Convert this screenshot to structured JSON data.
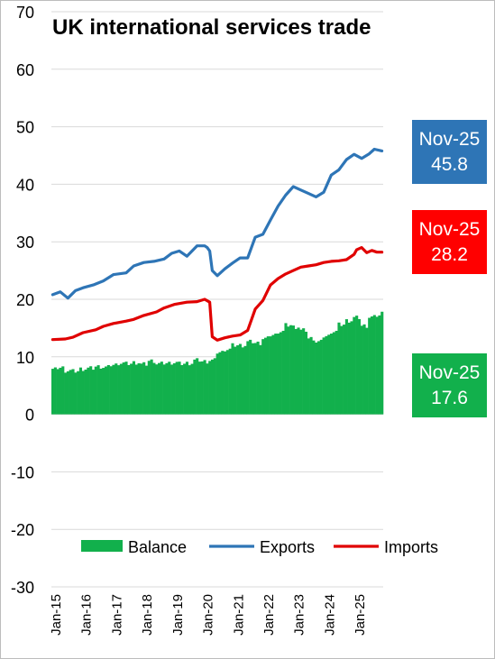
{
  "chart_data": {
    "type": "bar+line",
    "title": "UK international services trade",
    "xlabel": "",
    "ylabel": "",
    "ylim": [
      -30,
      70
    ],
    "y_ticks": [
      -30,
      -20,
      -10,
      0,
      10,
      20,
      30,
      40,
      50,
      60,
      70
    ],
    "x_tick_labels": [
      "Jan-15",
      "Jan-16",
      "Jan-17",
      "Jan-18",
      "Jan-19",
      "Jan-20",
      "Jan-21",
      "Jan-22",
      "Jan-23",
      "Jan-24",
      "Jan-25"
    ],
    "x_start": "2015-01",
    "x_end": "2025-11",
    "grid": true,
    "legend_position": "bottom",
    "colors": {
      "balance": "#12b04c",
      "exports": "#2e75b6",
      "imports": "#e00000",
      "grid": "#d9d9d9"
    },
    "series": [
      {
        "name": "Balance",
        "kind": "bar",
        "color": "#12b04c",
        "points": [
          [
            "2015-01",
            7.8
          ],
          [
            "2015-03",
            8.1
          ],
          [
            "2015-06",
            7.6
          ],
          [
            "2015-09",
            7.5
          ],
          [
            "2015-12",
            7.9
          ],
          [
            "2016-03",
            8.0
          ],
          [
            "2016-06",
            8.3
          ],
          [
            "2016-09",
            8.2
          ],
          [
            "2016-12",
            8.6
          ],
          [
            "2017-03",
            8.9
          ],
          [
            "2017-06",
            8.8
          ],
          [
            "2017-09",
            9.0
          ],
          [
            "2017-12",
            8.7
          ],
          [
            "2018-03",
            9.3
          ],
          [
            "2018-06",
            8.8
          ],
          [
            "2018-09",
            8.9
          ],
          [
            "2018-12",
            9.0
          ],
          [
            "2019-03",
            8.8
          ],
          [
            "2019-06",
            8.9
          ],
          [
            "2019-09",
            9.4
          ],
          [
            "2019-12",
            9.2
          ],
          [
            "2020-03",
            9.4
          ],
          [
            "2020-06",
            10.8
          ],
          [
            "2020-09",
            11.3
          ],
          [
            "2020-12",
            12.0
          ],
          [
            "2021-03",
            12.0
          ],
          [
            "2021-06",
            12.6
          ],
          [
            "2021-09",
            12.4
          ],
          [
            "2021-12",
            13.2
          ],
          [
            "2022-03",
            13.8
          ],
          [
            "2022-06",
            14.4
          ],
          [
            "2022-09",
            15.5
          ],
          [
            "2022-12",
            15.2
          ],
          [
            "2023-03",
            14.6
          ],
          [
            "2023-06",
            13.2
          ],
          [
            "2023-09",
            12.6
          ],
          [
            "2023-12",
            13.6
          ],
          [
            "2024-03",
            14.4
          ],
          [
            "2024-06",
            15.6
          ],
          [
            "2024-09",
            16.3
          ],
          [
            "2024-12",
            16.8
          ],
          [
            "2025-03",
            15.4
          ],
          [
            "2025-06",
            16.9
          ],
          [
            "2025-09",
            17.2
          ],
          [
            "2025-11",
            17.6
          ]
        ]
      },
      {
        "name": "Exports",
        "kind": "line",
        "color": "#2e75b6",
        "points": [
          [
            "2015-01",
            20.8
          ],
          [
            "2015-04",
            21.3
          ],
          [
            "2015-07",
            20.2
          ],
          [
            "2015-10",
            21.5
          ],
          [
            "2016-01",
            22.0
          ],
          [
            "2016-05",
            22.5
          ],
          [
            "2016-09",
            23.2
          ],
          [
            "2017-01",
            24.3
          ],
          [
            "2017-06",
            24.6
          ],
          [
            "2017-09",
            25.8
          ],
          [
            "2018-01",
            26.4
          ],
          [
            "2018-05",
            26.6
          ],
          [
            "2018-09",
            27.0
          ],
          [
            "2018-12",
            28.0
          ],
          [
            "2019-03",
            28.4
          ],
          [
            "2019-06",
            27.5
          ],
          [
            "2019-10",
            29.3
          ],
          [
            "2020-01",
            29.3
          ],
          [
            "2020-02",
            29.0
          ],
          [
            "2020-03",
            28.4
          ],
          [
            "2020-04",
            25.0
          ],
          [
            "2020-06",
            24.1
          ],
          [
            "2020-09",
            25.3
          ],
          [
            "2020-12",
            26.3
          ],
          [
            "2021-03",
            27.2
          ],
          [
            "2021-06",
            27.2
          ],
          [
            "2021-09",
            30.8
          ],
          [
            "2021-12",
            31.3
          ],
          [
            "2022-03",
            33.8
          ],
          [
            "2022-06",
            36.2
          ],
          [
            "2022-09",
            38.1
          ],
          [
            "2022-12",
            39.6
          ],
          [
            "2023-03",
            39.0
          ],
          [
            "2023-06",
            38.4
          ],
          [
            "2023-09",
            37.8
          ],
          [
            "2023-12",
            38.6
          ],
          [
            "2024-03",
            41.6
          ],
          [
            "2024-06",
            42.5
          ],
          [
            "2024-09",
            44.3
          ],
          [
            "2024-12",
            45.2
          ],
          [
            "2025-03",
            44.5
          ],
          [
            "2025-06",
            45.3
          ],
          [
            "2025-08",
            46.1
          ],
          [
            "2025-11",
            45.8
          ]
        ]
      },
      {
        "name": "Imports",
        "kind": "line",
        "color": "#e00000",
        "points": [
          [
            "2015-01",
            13.0
          ],
          [
            "2015-06",
            13.1
          ],
          [
            "2015-09",
            13.4
          ],
          [
            "2016-01",
            14.2
          ],
          [
            "2016-06",
            14.7
          ],
          [
            "2016-09",
            15.3
          ],
          [
            "2017-01",
            15.8
          ],
          [
            "2017-06",
            16.2
          ],
          [
            "2017-09",
            16.5
          ],
          [
            "2018-01",
            17.2
          ],
          [
            "2018-06",
            17.8
          ],
          [
            "2018-09",
            18.5
          ],
          [
            "2019-01",
            19.1
          ],
          [
            "2019-06",
            19.5
          ],
          [
            "2019-10",
            19.6
          ],
          [
            "2020-01",
            20.0
          ],
          [
            "2020-03",
            19.5
          ],
          [
            "2020-04",
            13.5
          ],
          [
            "2020-06",
            12.9
          ],
          [
            "2020-09",
            13.3
          ],
          [
            "2020-12",
            13.6
          ],
          [
            "2021-03",
            13.8
          ],
          [
            "2021-06",
            14.6
          ],
          [
            "2021-09",
            18.3
          ],
          [
            "2021-12",
            19.8
          ],
          [
            "2022-03",
            22.5
          ],
          [
            "2022-06",
            23.6
          ],
          [
            "2022-09",
            24.4
          ],
          [
            "2022-12",
            25.0
          ],
          [
            "2023-03",
            25.6
          ],
          [
            "2023-06",
            25.8
          ],
          [
            "2023-09",
            26.0
          ],
          [
            "2023-12",
            26.4
          ],
          [
            "2024-03",
            26.6
          ],
          [
            "2024-06",
            26.7
          ],
          [
            "2024-09",
            26.9
          ],
          [
            "2024-12",
            27.8
          ],
          [
            "2025-01",
            28.6
          ],
          [
            "2025-03",
            29.0
          ],
          [
            "2025-05",
            28.1
          ],
          [
            "2025-07",
            28.5
          ],
          [
            "2025-09",
            28.2
          ],
          [
            "2025-11",
            28.2
          ]
        ]
      }
    ],
    "callouts": [
      {
        "series": "Exports",
        "label": "Nov-25",
        "value": "45.8",
        "color": "#2e75b6"
      },
      {
        "series": "Imports",
        "label": "Nov-25",
        "value": "28.2",
        "color": "#ff0000"
      },
      {
        "series": "Balance",
        "label": "Nov-25",
        "value": "17.6",
        "color": "#12b04c"
      }
    ]
  }
}
